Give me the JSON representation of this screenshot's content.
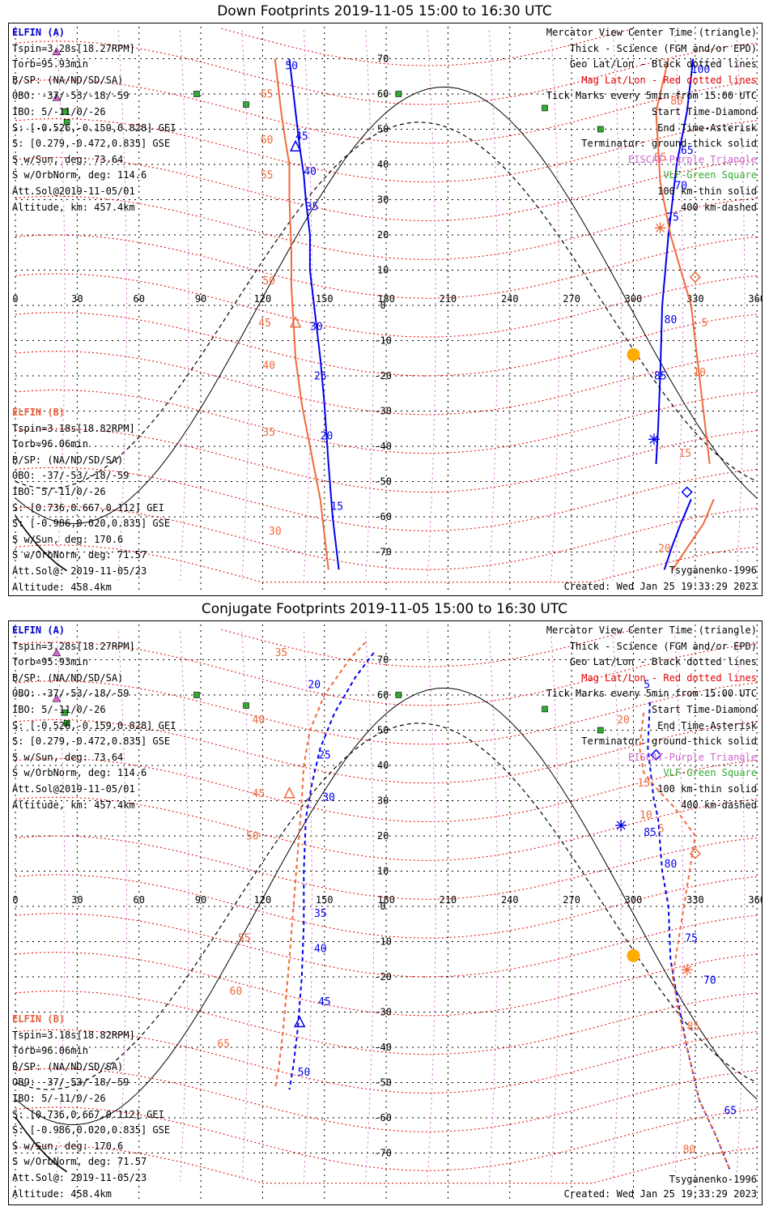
{
  "colors": {
    "blue": "#0000ee",
    "orange": "#f06a3c",
    "red": "#e00000",
    "purple": "#cc66cc",
    "green": "#33aa33",
    "sun": "#ffaa00"
  },
  "panels": [
    {
      "title": "Down Footprints 2019-11-05 15:00 to 16:30 UTC",
      "ticks_x": [
        "0",
        "30",
        "60",
        "90",
        "120",
        "150",
        "180",
        "210",
        "240",
        "270",
        "300",
        "330",
        "360"
      ],
      "ticks_y": [
        "70",
        "60",
        "50",
        "40",
        "30",
        "20",
        "10",
        "0",
        "-10",
        "-20",
        "-30",
        "-40",
        "-50",
        "-60",
        "-70"
      ],
      "info_a": {
        "header": "ELFIN (A)",
        "lines": [
          "Tspin=3.28s[18.27RPM]",
          "Torb=95.93min",
          "B/SP: (NA/ND/SD/SA)",
          "OBO: -37/-53/-18/-59",
          "IBO: 5/-11/0/-26",
          "S: [-0.526,-0.159,0.828] GEI",
          "S: [0.279,-0.472,0.835] GSE",
          "S w/Sun, deg: 73.64",
          "S w/OrbNorm, deg: 114.6",
          "Att.Sol@2019-11-05/01",
          "Altitude, km: 457.4km"
        ]
      },
      "info_b": {
        "header": "ELFIN (B)",
        "lines": [
          "Tspin=3.18s[18.82RPM]",
          "Torb=96.06min",
          "B/SP: (NA/ND/SD/SA)",
          "OBO: -37/-53/-18/-59",
          "IBO: 5/-11/0/-26",
          "S: [0.736,0.667,0.112] GEI",
          "S: [-0.986,0.020,0.835] GSE",
          "S w/Sun, deg: 170.6",
          "S w/OrbNorm, deg: 71.57",
          "Att.Sol@: 2019-11-05/23",
          "Altitude: 458.4km"
        ]
      },
      "legend": [
        "Mercator View Center Time (triangle)",
        "Thick - Science (FGM and/or EPD)",
        "Geo Lat/Lon - Black dotted lines",
        "Mag Lat/Lon - Red dotted lines",
        "Tick Marks every 5min from 15:00 UTC",
        "Start Time-Diamond",
        "End Time-Asterisk",
        "Terminator: ground-thick solid",
        "EISCAT-Purple Triangle",
        "VLF-Green Square",
        "100 km-thin solid",
        "400 km-dashed"
      ],
      "model": "Tsyganenko-1996",
      "created": "Created: Wed Jan 25 19:33:29 2023",
      "track_a_west_labels": [
        "50",
        "45",
        "40",
        "35",
        "30",
        "25",
        "20",
        "15"
      ],
      "track_b_west_labels": [
        "65",
        "60",
        "55",
        "50",
        "45",
        "40",
        "35",
        "30"
      ],
      "track_a_east_labels": [
        "100",
        "65",
        "70",
        "75",
        "80",
        "85"
      ],
      "track_b_east_labels": [
        "80",
        "85",
        "5",
        "10",
        "15",
        "20"
      ]
    },
    {
      "title": "Conjugate Footprints 2019-11-05 15:00 to 16:30 UTC",
      "ticks_x": [
        "0",
        "30",
        "60",
        "90",
        "120",
        "150",
        "180",
        "210",
        "240",
        "270",
        "300",
        "330",
        "360"
      ],
      "ticks_y": [
        "70",
        "60",
        "50",
        "40",
        "30",
        "20",
        "10",
        "0",
        "-10",
        "-20",
        "-30",
        "-40",
        "-50",
        "-60",
        "-70"
      ],
      "info_a": {
        "header": "ELFIN (A)",
        "lines": [
          "Tspin=3.28s[18.27RPM]",
          "Torb=95.93min",
          "B/SP: (NA/ND/SD/SA)",
          "OBO: -37/-53/-18/-59",
          "IBO: 5/-11/0/-26",
          "S: [-0.526,-0.159,0.828] GEI",
          "S: [0.279,-0.472,0.835] GSE",
          "S w/Sun, deg: 73.64",
          "S w/OrbNorm, deg: 114.6",
          "Att.Sol@2019-11-05/01",
          "Altitude, km: 457.4km"
        ]
      },
      "info_b": {
        "header": "ELFIN (B)",
        "lines": [
          "Tspin=3.18s[18.82RPM]",
          "Torb=96.06min",
          "B/SP: (NA/ND/SD/SA)",
          "OBO: -37/-53/-18/-59",
          "IBO: 5/-11/0/-26",
          "S: [0.736,0.667,0.112] GEI",
          "S: [-0.986,0.020,0.835] GSE",
          "S w/Sun, deg: 170.6",
          "S w/OrbNorm, deg: 71.57",
          "Att.Sol@: 2019-11-05/23",
          "Altitude: 458.4km"
        ]
      },
      "legend": [
        "Mercator View Center Time (triangle)",
        "Thick - Science (FGM and/or EPD)",
        "Geo Lat/Lon - Black dotted lines",
        "Mag Lat/Lon - Red dotted lines",
        "Tick Marks every 5min from 15:00 UTC",
        "Start Time-Diamond",
        "End Time-Asterisk",
        "Terminator: ground-thick solid",
        "EISCAT-Purple Triangle",
        "VLF-Green Square",
        "100 km-thin solid",
        "400 km-dashed"
      ],
      "model": "Tsyganenko-1996",
      "created": "Created: Wed Jan 25 19:33:29 2023",
      "track_a_west_labels": [
        "20",
        "25",
        "30",
        "35",
        "40",
        "45",
        "50"
      ],
      "track_b_west_labels": [
        "35",
        "40",
        "45",
        "50",
        "55",
        "60",
        "65"
      ],
      "track_a_east_labels": [
        "5",
        "85",
        "80",
        "75",
        "70",
        "65"
      ],
      "track_b_east_labels": [
        "20",
        "15",
        "10",
        "5",
        "85",
        "80"
      ]
    }
  ],
  "chart_data": [
    {
      "type": "line",
      "title": "Down Footprints 2019-11-05 15:00 to 16:30 UTC",
      "x_ticks": [
        0,
        30,
        60,
        90,
        120,
        150,
        180,
        210,
        240,
        270,
        300,
        330,
        360
      ],
      "y_ticks": [
        70,
        60,
        50,
        40,
        30,
        20,
        10,
        0,
        -10,
        -20,
        -30,
        -40,
        -50,
        -60,
        -70
      ],
      "xlim": [
        0,
        360
      ],
      "ylim": [
        -75,
        75
      ],
      "grid": true,
      "series": [
        {
          "name": "ELFIN (A)",
          "segment": "west",
          "color": "#0000ee",
          "x": [
            133,
            136,
            138,
            140,
            141,
            143,
            143,
            145,
            148,
            150,
            152,
            154,
            157
          ],
          "y": [
            70,
            55,
            45,
            37,
            30,
            20,
            10,
            0,
            -15,
            -28,
            -45,
            -60,
            -75
          ]
        },
        {
          "name": "ELFIN (B)",
          "segment": "west",
          "color": "#f06a3c",
          "x": [
            126,
            129,
            131,
            133,
            133,
            134,
            134,
            135,
            136,
            139,
            143,
            148,
            152
          ],
          "y": [
            70,
            55,
            47,
            40,
            30,
            15,
            5,
            -5,
            -15,
            -28,
            -40,
            -55,
            -75
          ]
        },
        {
          "name": "ELFIN (A)",
          "segment": "east",
          "color": "#0000ee",
          "x": [
            329,
            326,
            321,
            319,
            317,
            314,
            313,
            312,
            311
          ],
          "y": [
            70,
            55,
            40,
            30,
            20,
            0,
            -20,
            -35,
            -45
          ]
        },
        {
          "name": "ELFIN (B)",
          "segment": "east",
          "color": "#f06a3c",
          "x": [
            317,
            311,
            313,
            318,
            328,
            332,
            337
          ],
          "y": [
            70,
            55,
            35,
            20,
            0,
            -20,
            -45
          ]
        },
        {
          "name": "ELFIN (A)",
          "segment": "east-end",
          "color": "#0000ee",
          "x": [
            328,
            323,
            319,
            315
          ],
          "y": [
            -55,
            -62,
            -68,
            -75
          ]
        },
        {
          "name": "ELFIN (B)",
          "segment": "east-end",
          "color": "#f06a3c",
          "x": [
            339,
            334,
            327,
            319
          ],
          "y": [
            -55,
            -62,
            -68,
            -75
          ]
        }
      ]
    },
    {
      "type": "line",
      "title": "Conjugate Footprints 2019-11-05 15:00 to 16:30 UTC",
      "x_ticks": [
        0,
        30,
        60,
        90,
        120,
        150,
        180,
        210,
        240,
        270,
        300,
        330,
        360
      ],
      "y_ticks": [
        70,
        60,
        50,
        40,
        30,
        20,
        10,
        0,
        -10,
        -20,
        -30,
        -40,
        -50,
        -60,
        -70
      ],
      "xlim": [
        0,
        360
      ],
      "ylim": [
        -75,
        75
      ],
      "grid": true,
      "series": [
        {
          "name": "ELFIN (A)",
          "segment": "west",
          "color": "#0000ee",
          "x": [
            174,
            165,
            155,
            148,
            144,
            141,
            140,
            140,
            139,
            137,
            135,
            133
          ],
          "y": [
            72,
            65,
            55,
            45,
            35,
            25,
            10,
            -5,
            -20,
            -35,
            -45,
            -52
          ]
        },
        {
          "name": "ELFIN (B)",
          "segment": "west",
          "color": "#f06a3c",
          "x": [
            170,
            162,
            150,
            143,
            140,
            139,
            137,
            135,
            133,
            130,
            128,
            126
          ],
          "y": [
            75,
            70,
            60,
            50,
            40,
            30,
            15,
            0,
            -15,
            -35,
            -45,
            -52
          ]
        },
        {
          "name": "ELFIN (A)",
          "segment": "east",
          "color": "#0000ee",
          "x": [
            308,
            307,
            310,
            312,
            314,
            317,
            318,
            321,
            326,
            332,
            340,
            347
          ],
          "y": [
            58,
            45,
            30,
            25,
            10,
            0,
            -15,
            -25,
            -40,
            -55,
            -65,
            -75
          ]
        },
        {
          "name": "ELFIN (B)",
          "segment": "east",
          "color": "#f06a3c",
          "x": [
            305,
            303,
            305,
            312,
            320,
            330,
            319,
            322,
            328,
            332,
            340,
            347
          ],
          "y": [
            55,
            45,
            38,
            33,
            28,
            20,
            -20,
            -30,
            -45,
            -55,
            -65,
            -75
          ]
        }
      ]
    }
  ]
}
